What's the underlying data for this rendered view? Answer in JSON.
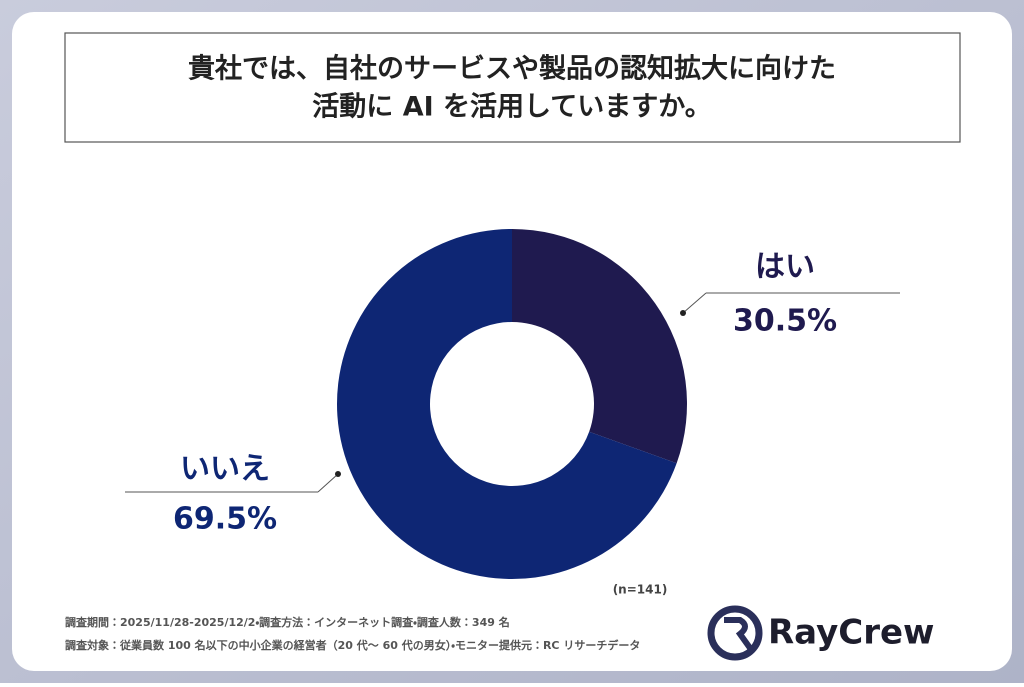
{
  "chart_data": {
    "type": "donut",
    "title_lines": [
      "貴社では、自社のサービスや製品の認知拡大に向けた",
      "活動に AI を活用していますか。"
    ],
    "categories": [
      "はい",
      "いいえ"
    ],
    "values": [
      30.5,
      69.5
    ],
    "value_labels": [
      "30.5%",
      "69.5%"
    ],
    "colors": [
      "#1f1a4f",
      "#0e2674"
    ],
    "sample_note": "(n=141)",
    "footnotes": [
      "調査期間：2025/11/28-2025/12/2・調査方法：インターネット調査・調査人数：349 名",
      "調査対象：従業員数 100 名以下の中小企業の経営者（20 代〜 60 代の男女）・モニター提供元：RC リサーチデータ"
    ],
    "brand": "RayCrew"
  }
}
